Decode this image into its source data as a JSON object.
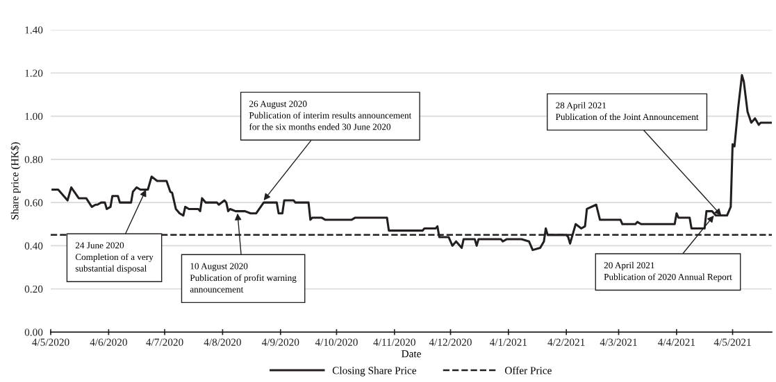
{
  "chart_data": {
    "type": "line",
    "xlabel": "Date",
    "ylabel": "Share price (HK$)",
    "x": [
      "2020-05-05",
      "2020-05-08",
      "2020-05-13",
      "2020-05-15",
      "2020-05-19",
      "2020-05-23",
      "2020-05-26",
      "2020-05-28",
      "2020-05-29",
      "2020-05-31",
      "2020-06-02",
      "2020-06-03",
      "2020-06-05",
      "2020-06-06",
      "2020-06-09",
      "2020-06-10",
      "2020-06-16",
      "2020-06-17",
      "2020-06-19",
      "2020-06-21",
      "2020-06-25",
      "2020-06-27",
      "2020-06-30",
      "2020-07-05",
      "2020-07-07",
      "2020-07-08",
      "2020-07-10",
      "2020-07-12",
      "2020-07-14",
      "2020-07-15",
      "2020-07-17",
      "2020-07-22",
      "2020-07-23",
      "2020-07-24",
      "2020-07-26",
      "2020-08-01",
      "2020-08-02",
      "2020-08-05",
      "2020-08-06",
      "2020-08-07",
      "2020-08-08",
      "2020-08-11",
      "2020-08-16",
      "2020-08-19",
      "2020-08-22",
      "2020-08-26",
      "2020-08-29",
      "2020-09-02",
      "2020-09-03",
      "2020-09-05",
      "2020-09-06",
      "2020-09-11",
      "2020-09-12",
      "2020-09-19",
      "2020-09-20",
      "2020-09-21",
      "2020-09-26",
      "2020-09-28",
      "2020-10-12",
      "2020-10-14",
      "2020-10-31",
      "2020-11-01",
      "2020-11-19",
      "2020-11-20",
      "2020-11-26",
      "2020-11-27",
      "2020-11-28",
      "2020-12-03",
      "2020-12-04",
      "2020-12-05",
      "2020-12-07",
      "2020-12-10",
      "2020-12-11",
      "2020-12-17",
      "2020-12-18",
      "2020-12-19",
      "2020-12-31",
      "2021-01-01",
      "2021-01-03",
      "2021-01-11",
      "2021-01-15",
      "2021-01-17",
      "2021-01-21",
      "2021-01-23",
      "2021-01-24",
      "2021-01-25",
      "2021-02-04",
      "2021-02-05",
      "2021-02-06",
      "2021-02-09",
      "2021-02-12",
      "2021-02-14",
      "2021-02-15",
      "2021-02-20",
      "2021-02-22",
      "2021-03-05",
      "2021-03-06",
      "2021-03-13",
      "2021-03-14",
      "2021-03-16",
      "2021-04-03",
      "2021-04-04",
      "2021-04-05",
      "2021-04-11",
      "2021-04-12",
      "2021-04-19",
      "2021-04-20",
      "2021-04-23",
      "2021-04-25",
      "2021-05-01",
      "2021-05-03",
      "2021-05-04",
      "2021-05-05",
      "2021-05-07",
      "2021-05-09",
      "2021-05-10",
      "2021-05-12",
      "2021-05-14",
      "2021-05-16",
      "2021-05-18",
      "2021-05-19",
      "2021-05-25"
    ],
    "series": [
      {
        "name": "Closing Share Price",
        "color": "#231f20",
        "values": [
          0.66,
          0.66,
          0.61,
          0.67,
          0.62,
          0.62,
          0.58,
          0.59,
          0.59,
          0.6,
          0.6,
          0.57,
          0.58,
          0.63,
          0.63,
          0.6,
          0.6,
          0.65,
          0.67,
          0.66,
          0.66,
          0.72,
          0.7,
          0.7,
          0.65,
          0.645,
          0.57,
          0.55,
          0.54,
          0.58,
          0.57,
          0.57,
          0.56,
          0.62,
          0.6,
          0.6,
          0.59,
          0.61,
          0.6,
          0.56,
          0.57,
          0.56,
          0.56,
          0.55,
          0.55,
          0.6,
          0.6,
          0.6,
          0.55,
          0.55,
          0.61,
          0.61,
          0.6,
          0.6,
          0.52,
          0.53,
          0.53,
          0.52,
          0.52,
          0.53,
          0.53,
          0.47,
          0.47,
          0.48,
          0.48,
          0.49,
          0.44,
          0.44,
          0.42,
          0.4,
          0.42,
          0.39,
          0.43,
          0.43,
          0.4,
          0.43,
          0.43,
          0.42,
          0.43,
          0.43,
          0.42,
          0.38,
          0.39,
          0.42,
          0.48,
          0.45,
          0.45,
          0.44,
          0.41,
          0.5,
          0.48,
          0.49,
          0.57,
          0.59,
          0.52,
          0.52,
          0.5,
          0.5,
          0.51,
          0.5,
          0.5,
          0.55,
          0.53,
          0.53,
          0.48,
          0.48,
          0.56,
          0.56,
          0.54,
          0.54,
          0.58,
          0.87,
          0.86,
          1.04,
          1.19,
          1.16,
          1.02,
          0.97,
          0.99,
          0.96,
          0.97,
          0.97
        ]
      }
    ],
    "xlim": [
      "2020-05-04",
      "2021-05-25"
    ],
    "xticks": [
      {
        "value": "2020-05-04",
        "label": "4/5/2020"
      },
      {
        "value": "2020-06-04",
        "label": "4/6/2020"
      },
      {
        "value": "2020-07-04",
        "label": "4/7/2020"
      },
      {
        "value": "2020-08-04",
        "label": "4/8/2020"
      },
      {
        "value": "2020-09-04",
        "label": "4/9/2020"
      },
      {
        "value": "2020-10-04",
        "label": "4/10/2020"
      },
      {
        "value": "2020-11-04",
        "label": "4/11/2020"
      },
      {
        "value": "2020-12-04",
        "label": "4/12/2020"
      },
      {
        "value": "2021-01-04",
        "label": "4/1/2021"
      },
      {
        "value": "2021-02-04",
        "label": "4/2/2021"
      },
      {
        "value": "2021-03-04",
        "label": "4/3/2021"
      },
      {
        "value": "2021-04-04",
        "label": "4/4/2021"
      },
      {
        "value": "2021-05-04",
        "label": "4/5/2021"
      }
    ],
    "ylim": [
      0,
      1.4
    ],
    "yticks": [
      {
        "value": 0,
        "label": "0.00"
      },
      {
        "value": 0.2,
        "label": "0.20"
      },
      {
        "value": 0.4,
        "label": "0.40"
      },
      {
        "value": 0.6,
        "label": "0.60"
      },
      {
        "value": 0.8,
        "label": "0.80"
      },
      {
        "value": 1.0,
        "label": "1.00"
      },
      {
        "value": 1.2,
        "label": "1.20"
      },
      {
        "value": 1.4,
        "label": "1.40"
      }
    ],
    "ref_lines": [
      {
        "axis": "y",
        "value": 0.45,
        "label": "Offer Price",
        "color": "#231f20",
        "line_style": "dashed"
      }
    ],
    "annotations": [
      {
        "text": "24 June 2020\nCompletion of a very\nsubstantial disposal",
        "x": "2020-06-24",
        "y": 0.66
      },
      {
        "text": "10 August 2020\nPublication of profit warning\nannouncement",
        "x": "2020-08-12",
        "y": 0.55
      },
      {
        "text": "26 August 2020\nPublication of interim results announcement\nfor the six months ended 30 June 2020",
        "x": "2020-08-26",
        "y": 0.61
      },
      {
        "text": "28 April 2021\nPublication of the Joint Announcement",
        "x": "2021-04-28",
        "y": 0.54
      },
      {
        "text": "20 April 2021\nPublication of 2020 Annual Report",
        "x": "2021-04-24",
        "y": 0.54
      }
    ],
    "grid": "y",
    "legend": "bottom",
    "line_style": "solid",
    "marker": "none"
  }
}
